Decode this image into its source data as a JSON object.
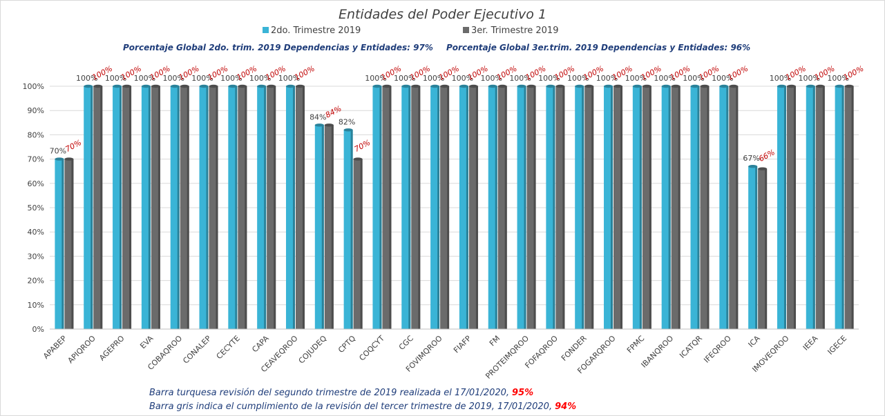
{
  "chart_data": {
    "type": "bar",
    "title": "Entidades del Poder Ejecutivo 1",
    "categories": [
      "APABEP",
      "APIQROO",
      "AGEPRO",
      "EVA",
      "COBAQROO",
      "CONALEP",
      "CECYTE",
      "CAPA",
      "CEAVEQROO",
      "COJUDEQ",
      "CPTQ",
      "COQCYT",
      "CGC",
      "FOVIMQROO",
      "FIAFP",
      "FM",
      "PROTEIMQROO",
      "FOFAQROO",
      "FONDER",
      "FOGARQROO",
      "FPMC",
      "IBANQROO",
      "ICATQR",
      "IFEQROO",
      "ICA",
      "IMOVEQROO",
      "IEEA",
      "IGECE"
    ],
    "series": [
      {
        "name": "2do. Trimestre 2019",
        "color": "#3ab4d6",
        "values": [
          70,
          100,
          100,
          100,
          100,
          100,
          100,
          100,
          100,
          84,
          82,
          100,
          100,
          100,
          100,
          100,
          100,
          100,
          100,
          100,
          100,
          100,
          100,
          100,
          67,
          100,
          100,
          100
        ],
        "labels": [
          "70%",
          "100%",
          "100%",
          "100%",
          "100%",
          "100%",
          "100%",
          "100%",
          "100%",
          "84%",
          "82%",
          "100%",
          "100%",
          "100%",
          "100%",
          "100%",
          "100%",
          "100%",
          "100%",
          "100%",
          "100%",
          "100%",
          "100%",
          "100%",
          "67%",
          "100%",
          "100%",
          "100%"
        ]
      },
      {
        "name": "3er. Trimestre 2019",
        "color": "#6b6b6b",
        "values": [
          70,
          100,
          100,
          100,
          100,
          100,
          100,
          100,
          100,
          84,
          70,
          100,
          100,
          100,
          100,
          100,
          100,
          100,
          100,
          100,
          100,
          100,
          100,
          100,
          66,
          100,
          100,
          100
        ],
        "labels": [
          "70%",
          "100%",
          "100%",
          "100%",
          "100%",
          "100%",
          "100%",
          "100%",
          "100%",
          "84%",
          "70%",
          "100%",
          "100%",
          "100%",
          "100%",
          "100%",
          "100%",
          "100%",
          "100%",
          "100%",
          "100%",
          "100%",
          "100%",
          "100%",
          "66%",
          "100%",
          "100%",
          "100%"
        ]
      }
    ],
    "ylim": [
      0,
      100
    ],
    "yticks": [
      "0%",
      "10%",
      "20%",
      "30%",
      "40%",
      "50%",
      "60%",
      "70%",
      "80%",
      "90%",
      "100%"
    ],
    "grid": true,
    "legend_position": "top"
  },
  "global_text": {
    "q2": "Porcentaje Global 2do. trim.  2019 Dependencias y Entidades: 97%",
    "q3": "Porcentaje Global  3er.trim.  2019 Dependencias y Entidades: 96%"
  },
  "notes": {
    "line1_text": "Barra turquesa  revisión  del  segundo  trimestre  de 2019 realizada el  17/01/2020,",
    "line1_pct": "95%",
    "line2_text": "Barra gris indica el cumplimiento  de la revisión del tercer trimestre de 2019,  17/01/2020,",
    "line2_pct": "94%"
  }
}
